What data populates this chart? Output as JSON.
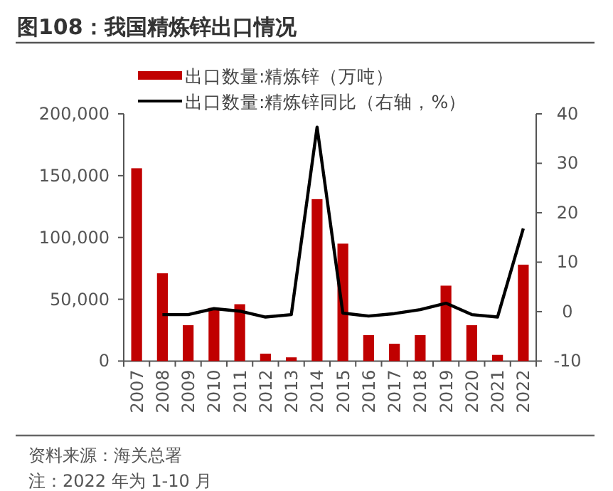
{
  "chart_data": {
    "type": "bar",
    "title": "图108：我国精炼锌出口情况",
    "categories": [
      "2007",
      "2008",
      "2009",
      "2010",
      "2011",
      "2012",
      "2013",
      "2014",
      "2015",
      "2016",
      "2017",
      "2018",
      "2019",
      "2020",
      "2021",
      "2022"
    ],
    "series": [
      {
        "name": "出口数量:精炼锌（万吨）",
        "color": "#c00000",
        "values": [
          156000,
          71000,
          29000,
          43000,
          46000,
          6000,
          3000,
          131000,
          95000,
          21000,
          14000,
          21000,
          61000,
          29000,
          5000,
          78000
        ]
      },
      {
        "name": "出口数量:精炼锌同比（右轴，%）",
        "type": "line",
        "axis": "y2",
        "color": "#000000",
        "values": [
          null,
          -0.6,
          -0.6,
          0.6,
          0.1,
          -1.1,
          -0.6,
          37.3,
          -0.3,
          -0.9,
          -0.4,
          0.4,
          1.7,
          -0.6,
          -1.1,
          16.8
        ]
      }
    ],
    "ylim": [
      0,
      200000
    ],
    "yticks": [
      {
        "value": 0,
        "label": "0"
      },
      {
        "value": 50000,
        "label": "50,000"
      },
      {
        "value": 100000,
        "label": "100,000"
      },
      {
        "value": 150000,
        "label": "150,000"
      },
      {
        "value": 200000,
        "label": "200,000"
      }
    ],
    "y2lim": [
      -10,
      40
    ],
    "y2ticks": [
      -10,
      0,
      10,
      20,
      30,
      40
    ],
    "legend": "top",
    "annotations": [
      "资料来源：海关总署",
      "注：2022 年为 1-10 月"
    ]
  }
}
